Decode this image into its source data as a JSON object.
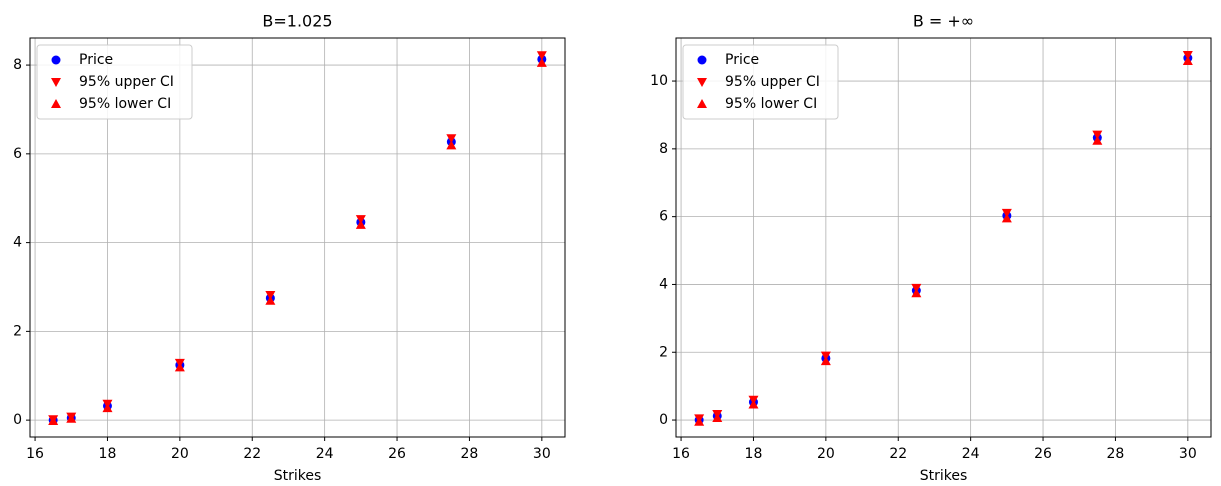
{
  "chart_data": [
    {
      "type": "scatter",
      "title": "B=1.025",
      "x_label": "Strikes",
      "x": [
        16.5,
        17,
        18,
        20,
        22.5,
        25,
        27.5,
        30
      ],
      "series": [
        {
          "name": "Price",
          "color": "#0000ff",
          "marker": "circle",
          "values": [
            0,
            0.05,
            0.32,
            1.24,
            2.75,
            4.46,
            6.27,
            8.13
          ]
        },
        {
          "name": "95% upper CI",
          "color": "#ff0000",
          "marker": "triangle-down",
          "values": [
            0.02,
            0.08,
            0.37,
            1.29,
            2.82,
            4.53,
            6.35,
            8.22
          ]
        },
        {
          "name": "95% lower CI",
          "color": "#ff0000",
          "marker": "triangle-up",
          "values": [
            -0.02,
            0.03,
            0.27,
            1.19,
            2.69,
            4.4,
            6.19,
            8.05
          ]
        }
      ],
      "xlim": [
        15.86,
        30.64
      ],
      "ylim": [
        -0.38,
        8.61
      ],
      "xticks": [
        16,
        18,
        20,
        22,
        24,
        26,
        28,
        30
      ],
      "yticks": [
        0,
        2,
        4,
        6,
        8
      ],
      "grid": true,
      "legend": "upper left"
    },
    {
      "type": "scatter",
      "title": "B = +∞",
      "x_label": "Strikes",
      "x": [
        16.5,
        17,
        18,
        20,
        22.5,
        25,
        27.5,
        30
      ],
      "series": [
        {
          "name": "Price",
          "color": "#0000ff",
          "marker": "circle",
          "values": [
            0,
            0.12,
            0.53,
            1.82,
            3.82,
            6.03,
            8.33,
            10.68
          ]
        },
        {
          "name": "95% upper CI",
          "color": "#ff0000",
          "marker": "triangle-down",
          "values": [
            0.05,
            0.18,
            0.6,
            1.9,
            3.9,
            6.11,
            8.42,
            10.77
          ]
        },
        {
          "name": "95% lower CI",
          "color": "#ff0000",
          "marker": "triangle-up",
          "values": [
            -0.05,
            0.06,
            0.46,
            1.74,
            3.74,
            5.95,
            8.24,
            10.59
          ]
        }
      ],
      "xlim": [
        15.86,
        30.64
      ],
      "ylim": [
        -0.5,
        11.27
      ],
      "xticks": [
        16,
        18,
        20,
        22,
        24,
        26,
        28,
        30
      ],
      "yticks": [
        0,
        2,
        4,
        6,
        8,
        10
      ],
      "grid": true,
      "legend": "upper left"
    }
  ]
}
